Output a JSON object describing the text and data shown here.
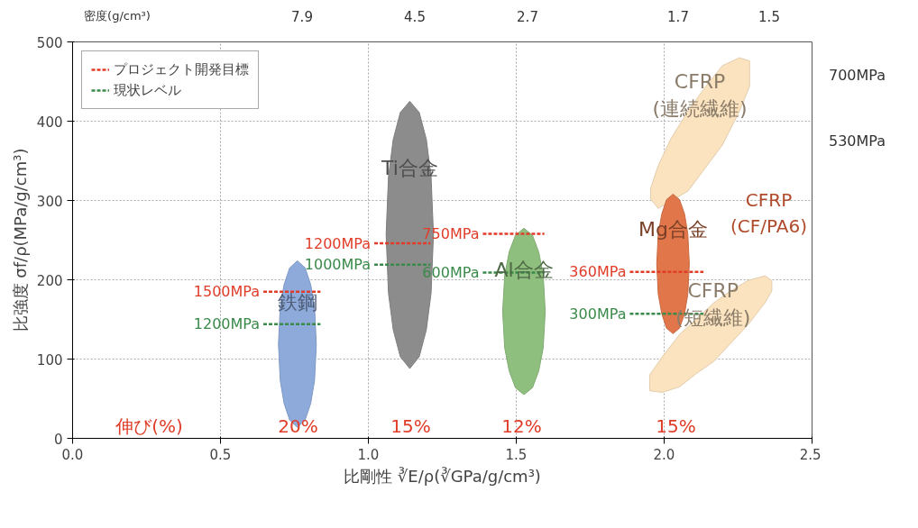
{
  "chart_data": {
    "type": "area",
    "xlabel": "比剛性 ∛E/ρ(∛GPa/g/cm³)",
    "ylabel": "比強度 σf/ρ(MPa/g/cm³)",
    "xlim": [
      0,
      2.5
    ],
    "xticks": [
      {
        "value": 0,
        "label": "0.0"
      },
      {
        "value": 0.5,
        "label": "0.5"
      },
      {
        "value": 1,
        "label": "1.0"
      },
      {
        "value": 1.5,
        "label": "1.5"
      },
      {
        "value": 2,
        "label": "2.0"
      },
      {
        "value": 2.5,
        "label": "2.5"
      }
    ],
    "ylim": [
      0,
      500
    ],
    "yticks": [
      0,
      100,
      200,
      300,
      400,
      500
    ],
    "grid": true,
    "legend": "top left",
    "series": [
      {
        "name": "鉄鋼",
        "color": "#8eaadb",
        "x": [
          0.696,
          0.702,
          0.715,
          0.734,
          0.76,
          0.786,
          0.805,
          0.818,
          0.824,
          0.818,
          0.805,
          0.786,
          0.76,
          0.734,
          0.715,
          0.702
        ],
        "values": [
          119,
          165,
          194,
          215,
          224,
          215,
          194,
          165,
          119,
          73,
          44,
          23,
          14,
          23,
          44,
          73
        ]
      },
      {
        "name": "Ti合金",
        "color": "#8c8c8c",
        "x": [
          1.06,
          1.068,
          1.084,
          1.108,
          1.14,
          1.172,
          1.196,
          1.212,
          1.22,
          1.212,
          1.196,
          1.172,
          1.14,
          1.108,
          1.084,
          1.068
        ],
        "values": [
          257,
          330,
          377,
          411,
          425,
          411,
          377,
          330,
          257,
          183,
          137,
          103,
          88,
          103,
          137,
          183
        ]
      },
      {
        "name": "Al合金",
        "color": "#8fbf7f",
        "x": [
          1.454,
          1.461,
          1.476,
          1.497,
          1.526,
          1.555,
          1.576,
          1.591,
          1.598,
          1.591,
          1.576,
          1.555,
          1.526,
          1.497,
          1.476,
          1.461
        ],
        "values": [
          160,
          206,
          235,
          256,
          265,
          256,
          235,
          206,
          160,
          114,
          85,
          64,
          55,
          64,
          85,
          114
        ]
      },
      {
        "name": "CFRP\n(連続繊維)",
        "color": "#fbe3c0",
        "x": [
          1.954,
          1.98,
          2.023,
          2.081,
          2.139,
          2.197,
          2.254,
          2.289,
          2.289,
          2.254,
          2.197,
          2.139,
          2.081,
          2.023,
          1.98,
          1.954
        ],
        "values": [
          315,
          344,
          378,
          413,
          443,
          470,
          480,
          476,
          444,
          412,
          370,
          341,
          312,
          null,
          290,
          302
        ]
      },
      {
        "name": "CFRP\n(短繊維)",
        "color": "#fbe3c0",
        "x": [
          1.951,
          1.994,
          2.052,
          2.11,
          2.168,
          2.225,
          2.283,
          2.341,
          2.364,
          2.364,
          2.341,
          2.283,
          2.225,
          2.168,
          2.11,
          2.052,
          1.994,
          1.951
        ],
        "values": [
          80,
          103,
          131,
          151,
          171,
          186,
          199,
          205,
          199,
          186,
          171,
          143,
          120,
          97,
          82,
          65,
          58,
          60
        ]
      },
      {
        "name": "Mg合金",
        "color": "#e0764a",
        "x": [
          1.975,
          1.98,
          1.992,
          2.008,
          2.03,
          2.052,
          2.069,
          2.08,
          2.085,
          2.08,
          2.069,
          2.052,
          2.03,
          2.008,
          1.992,
          1.98
        ],
        "values": [
          220,
          258,
          283,
          301,
          308,
          301,
          283,
          258,
          220,
          182,
          157,
          139,
          132,
          139,
          157,
          182
        ]
      },
      {
        "name": "プロジェクト開発目標",
        "type": "line",
        "line_style": "dashed",
        "color": "#e03c28",
        "x": [
          0.645,
          0.838,
          0.9,
          1.02,
          1.21,
          1.3,
          1.387,
          1.595,
          1.7,
          1.884,
          2.133
        ],
        "values": [
          185,
          185,
          null,
          246,
          246,
          null,
          258,
          258,
          null,
          210,
          210
        ]
      },
      {
        "name": "現状レベル",
        "type": "line",
        "line_style": "dashed",
        "color": "#3a8a4a",
        "x": [
          0.645,
          0.838,
          0.9,
          1.02,
          1.21,
          1.3,
          1.387,
          1.595,
          1.7,
          1.884,
          2.133
        ],
        "values": [
          144,
          144,
          null,
          219,
          219,
          null,
          209,
          209,
          null,
          157,
          157
        ]
      }
    ],
    "annotations": [
      {
        "text": "1500MPa",
        "x": 0.645,
        "y": 185
      },
      {
        "text": "1200MPa",
        "x": 0.645,
        "y": 144
      },
      {
        "text": "1200MPa",
        "x": 1.02,
        "y": 246
      },
      {
        "text": "1000MPa",
        "x": 1.02,
        "y": 219
      },
      {
        "text": "750MPa",
        "x": 1.387,
        "y": 258
      },
      {
        "text": "600MPa",
        "x": 1.387,
        "y": 209
      },
      {
        "text": "360MPa",
        "x": 1.884,
        "y": 210
      },
      {
        "text": "300MPa",
        "x": 1.884,
        "y": 157
      },
      "CFRP\n(CF/PA6)",
      "伸び(%)",
      "20%",
      "15%",
      "12%",
      "15%",
      "700MPa",
      "530MPa",
      "密度(g/cm³)",
      "7.9",
      "4.5",
      "2.7",
      "1.7",
      "1.5"
    ]
  }
}
